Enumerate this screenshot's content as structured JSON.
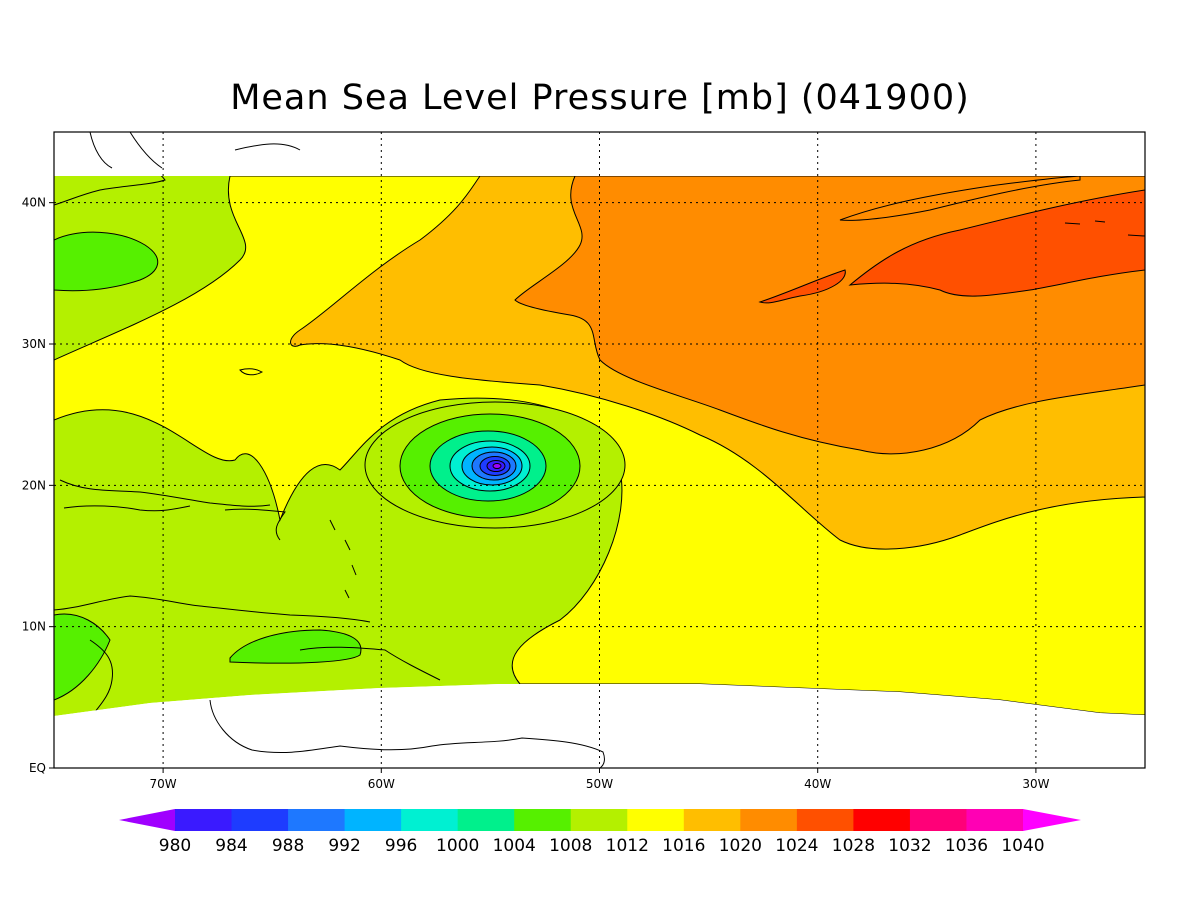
{
  "title": "Mean Sea Level Pressure [mb] (041900)",
  "map": {
    "lon_range": [
      -75,
      -25
    ],
    "lat_range": [
      0,
      45
    ],
    "lat_ticks": [
      {
        "lat": 40,
        "label": "40N"
      },
      {
        "lat": 30,
        "label": "30N"
      },
      {
        "lat": 20,
        "label": "20N"
      },
      {
        "lat": 10,
        "label": "10N"
      },
      {
        "lat": 0,
        "label": "EQ"
      }
    ],
    "lon_ticks": [
      {
        "lon": -70,
        "label": "70W"
      },
      {
        "lon": -60,
        "label": "60W"
      },
      {
        "lon": -50,
        "label": "50W"
      },
      {
        "lon": -40,
        "label": "40W"
      },
      {
        "lon": -30,
        "label": "30W"
      }
    ],
    "grid": "dotted",
    "low_center": {
      "lon": -55,
      "lat": 21,
      "min_level": 980
    }
  },
  "colorbar": {
    "levels": [
      "980",
      "984",
      "988",
      "992",
      "996",
      "1000",
      "1004",
      "1008",
      "1012",
      "1016",
      "1020",
      "1024",
      "1028",
      "1032",
      "1036",
      "1040"
    ],
    "colors": [
      "#a000ff",
      "#3a1aff",
      "#1e3cff",
      "#1e78ff",
      "#00b4ff",
      "#00f0d2",
      "#00f08c",
      "#56f000",
      "#b4f000",
      "#ffff00",
      "#ffbe00",
      "#ff8c00",
      "#ff5000",
      "#ff0000",
      "#ff0078",
      "#ff00b4",
      "#ff00ff"
    ]
  }
}
